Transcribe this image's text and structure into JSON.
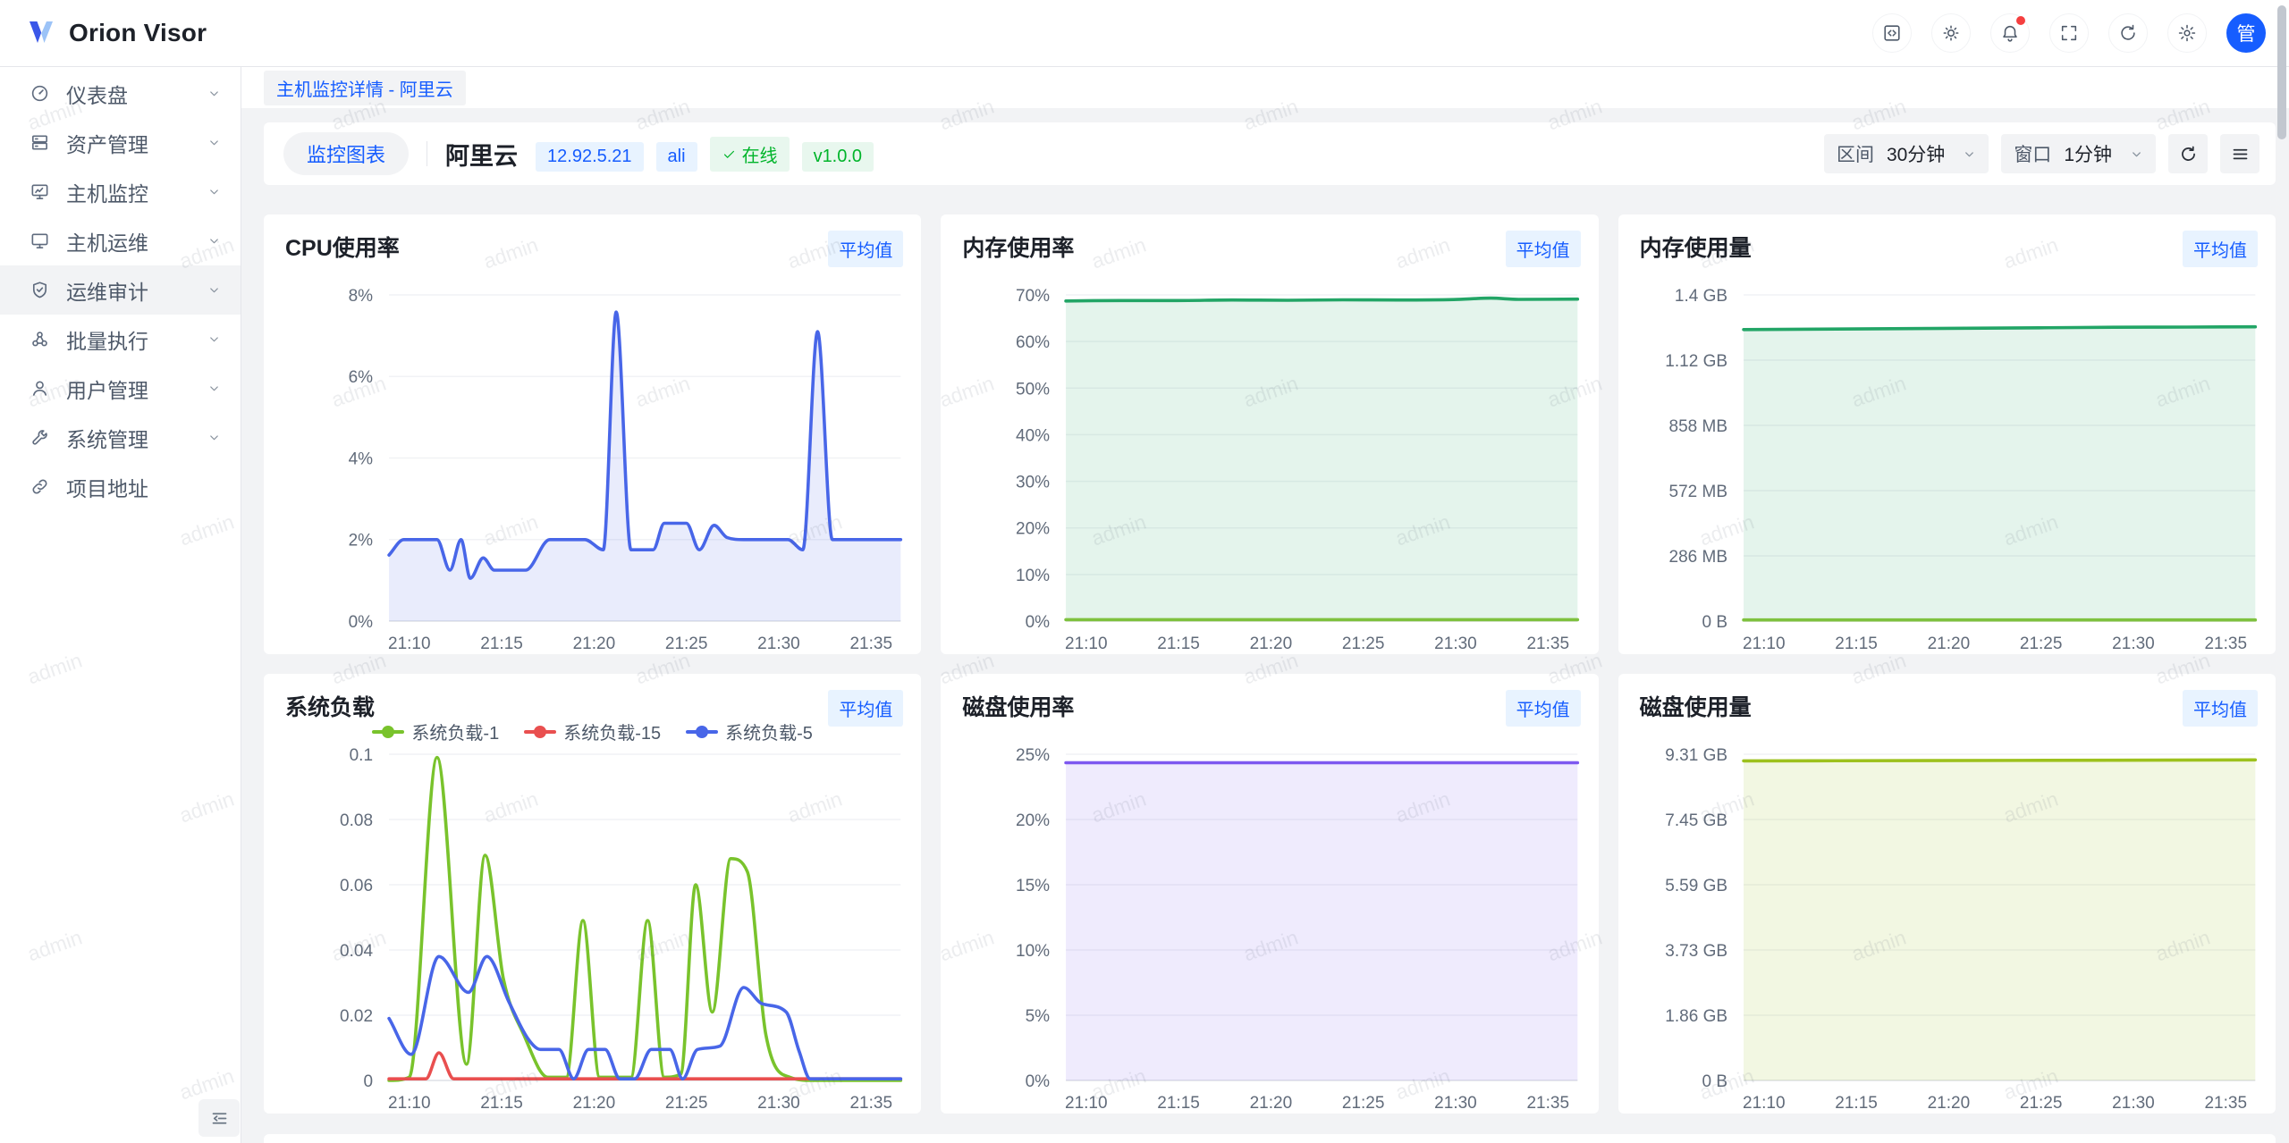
{
  "topbar": {
    "brand": "Orion Visor",
    "icons": [
      {
        "name": "code-icon",
        "badge": false
      },
      {
        "name": "theme-icon",
        "badge": false
      },
      {
        "name": "bell-icon",
        "badge": true
      },
      {
        "name": "fullscreen-icon",
        "badge": false
      },
      {
        "name": "refresh-icon",
        "badge": false
      },
      {
        "name": "settings-icon",
        "badge": false
      }
    ],
    "avatar_text": "管"
  },
  "sidebar": {
    "items": [
      {
        "key": "dashboard",
        "label": "仪表盘",
        "icon": "dashboard-icon",
        "chevron": true,
        "active": false
      },
      {
        "key": "assets",
        "label": "资产管理",
        "icon": "assets-icon",
        "chevron": true,
        "active": false
      },
      {
        "key": "host-monitor",
        "label": "主机监控",
        "icon": "host-monitor-icon",
        "chevron": true,
        "active": false
      },
      {
        "key": "host-ops",
        "label": "主机运维",
        "icon": "host-ops-icon",
        "chevron": true,
        "active": false
      },
      {
        "key": "ops-audit",
        "label": "运维审计",
        "icon": "audit-shield-icon",
        "chevron": true,
        "active": true
      },
      {
        "key": "batch-exec",
        "label": "批量执行",
        "icon": "batch-exec-icon",
        "chevron": true,
        "active": false
      },
      {
        "key": "user-mgmt",
        "label": "用户管理",
        "icon": "user-mgmt-icon",
        "chevron": true,
        "active": false
      },
      {
        "key": "system-mgmt",
        "label": "系统管理",
        "icon": "system-mgmt-icon",
        "chevron": true,
        "active": false
      },
      {
        "key": "project-link",
        "label": "项目地址",
        "icon": "project-link-icon",
        "chevron": false,
        "active": false
      }
    ]
  },
  "breadcrumb": {
    "label": "主机监控详情 - 阿里云"
  },
  "host_header": {
    "tab": "监控图表",
    "host_name": "阿里云",
    "tags": [
      {
        "key": "ip",
        "text": "12.92.5.21",
        "type": "blue",
        "check": false
      },
      {
        "key": "username",
        "text": "ali",
        "type": "blue",
        "check": false
      },
      {
        "key": "status",
        "text": "在线",
        "type": "green",
        "check": true
      },
      {
        "key": "version",
        "text": "v1.0.0",
        "type": "green",
        "check": false
      }
    ],
    "controls": {
      "interval_label": "区间",
      "interval_value": "30分钟",
      "window_label": "窗口",
      "window_value": "1分钟"
    }
  },
  "watermark": {
    "text": "admin"
  },
  "chart_data": [
    {
      "id": "cpu",
      "type": "area",
      "title": "CPU使用率",
      "badge": "平均值",
      "legend": false,
      "xlim": [
        0,
        27.7
      ],
      "ylim": [
        0,
        8
      ],
      "yticks": [
        "0%",
        "2%",
        "4%",
        "6%",
        "8%"
      ],
      "xticks": [
        {
          "t": 1.1,
          "label": "21:10"
        },
        {
          "t": 6.1,
          "label": "21:15"
        },
        {
          "t": 11.1,
          "label": "21:20"
        },
        {
          "t": 16.1,
          "label": "21:25"
        },
        {
          "t": 21.1,
          "label": "21:30"
        },
        {
          "t": 26.1,
          "label": "21:35"
        }
      ],
      "series": [
        {
          "name": "CPU使用率",
          "color": "#4866e8",
          "fill": "rgba(72,102,232,0.12)",
          "points": [
            [
              0,
              1.62
            ],
            [
              0.8,
              2
            ],
            [
              2.6,
              2
            ],
            [
              3.3,
              1.25
            ],
            [
              3.9,
              2
            ],
            [
              4.4,
              1.05
            ],
            [
              5.1,
              1.55
            ],
            [
              5.7,
              1.25
            ],
            [
              7.4,
              1.25
            ],
            [
              8.7,
              2
            ],
            [
              10.6,
              2
            ],
            [
              11.6,
              1.75
            ],
            [
              12.3,
              7.58
            ],
            [
              13.1,
              1.75
            ],
            [
              14.3,
              1.75
            ],
            [
              14.9,
              2.4
            ],
            [
              16.1,
              2.4
            ],
            [
              16.8,
              1.75
            ],
            [
              17.6,
              2.35
            ],
            [
              18.3,
              2.05
            ],
            [
              19.2,
              2
            ],
            [
              21.6,
              2
            ],
            [
              22.4,
              1.75
            ],
            [
              23.2,
              7.1
            ],
            [
              24,
              2
            ],
            [
              25.5,
              2
            ],
            [
              27.7,
              2
            ]
          ]
        }
      ]
    },
    {
      "id": "mem-rate",
      "type": "area",
      "title": "内存使用率",
      "badge": "平均值",
      "legend": false,
      "xlim": [
        0,
        27.7
      ],
      "ylim": [
        0,
        70
      ],
      "yticks": [
        "0%",
        "10%",
        "20%",
        "30%",
        "40%",
        "50%",
        "60%",
        "70%"
      ],
      "xticks": [
        {
          "t": 1.1,
          "label": "21:10"
        },
        {
          "t": 6.1,
          "label": "21:15"
        },
        {
          "t": 11.1,
          "label": "21:20"
        },
        {
          "t": 16.1,
          "label": "21:25"
        },
        {
          "t": 21.1,
          "label": "21:30"
        },
        {
          "t": 26.1,
          "label": "21:35"
        }
      ],
      "series": [
        {
          "name": "内存使用率",
          "color": "#22a566",
          "fill": "rgba(34,165,102,0.12)",
          "points": [
            [
              0,
              68.7
            ],
            [
              3,
              68.8
            ],
            [
              6,
              68.8
            ],
            [
              9,
              68.9
            ],
            [
              12,
              68.85
            ],
            [
              15,
              68.95
            ],
            [
              18,
              68.9
            ],
            [
              21,
              69
            ],
            [
              23,
              69.3
            ],
            [
              24.5,
              69.05
            ],
            [
              27.7,
              69.1
            ]
          ]
        },
        {
          "name": "",
          "color": "#7ec13e",
          "fill": null,
          "points": [
            [
              0,
              0.3
            ],
            [
              27.7,
              0.3
            ]
          ]
        }
      ]
    },
    {
      "id": "mem-usage",
      "type": "area",
      "title": "内存使用量",
      "badge": "平均值",
      "legend": false,
      "xlim": [
        0,
        27.7
      ],
      "ylim": [
        0,
        1.4
      ],
      "yticks": [
        "0 B",
        "286 MB",
        "572 MB",
        "858 MB",
        "1.12 GB",
        "1.4 GB"
      ],
      "xticks": [
        {
          "t": 1.1,
          "label": "21:10"
        },
        {
          "t": 6.1,
          "label": "21:15"
        },
        {
          "t": 11.1,
          "label": "21:20"
        },
        {
          "t": 16.1,
          "label": "21:25"
        },
        {
          "t": 21.1,
          "label": "21:30"
        },
        {
          "t": 26.1,
          "label": "21:35"
        }
      ],
      "series": [
        {
          "name": "内存使用量",
          "color": "#22a566",
          "fill": "rgba(34,165,102,0.12)",
          "points": [
            [
              0,
              1.251
            ],
            [
              4,
              1.253
            ],
            [
              8,
              1.255
            ],
            [
              12,
              1.257
            ],
            [
              16,
              1.259
            ],
            [
              20,
              1.261
            ],
            [
              24,
              1.262
            ],
            [
              27.7,
              1.263
            ]
          ]
        },
        {
          "name": "",
          "color": "#7ec13e",
          "fill": null,
          "points": [
            [
              0,
              0.005
            ],
            [
              27.7,
              0.005
            ]
          ]
        }
      ]
    },
    {
      "id": "load",
      "type": "line",
      "title": "系统负载",
      "badge": "平均值",
      "legend": true,
      "xlim": [
        0,
        27.7
      ],
      "ylim": [
        0,
        0.1
      ],
      "yticks": [
        "0",
        "0.02",
        "0.04",
        "0.06",
        "0.08",
        "0.1"
      ],
      "xticks": [
        {
          "t": 1.1,
          "label": "21:10"
        },
        {
          "t": 6.1,
          "label": "21:15"
        },
        {
          "t": 11.1,
          "label": "21:20"
        },
        {
          "t": 16.1,
          "label": "21:25"
        },
        {
          "t": 21.1,
          "label": "21:30"
        },
        {
          "t": 26.1,
          "label": "21:35"
        }
      ],
      "series": [
        {
          "name": "系统负载-1",
          "color": "#79c32c",
          "fill": null,
          "points": [
            [
              0,
              0
            ],
            [
              1.1,
              0.001
            ],
            [
              2.6,
              0.099
            ],
            [
              4.2,
              0.005
            ],
            [
              5.2,
              0.069
            ],
            [
              6.2,
              0.031
            ],
            [
              7.3,
              0.014
            ],
            [
              8.6,
              0.001
            ],
            [
              9.6,
              0.001
            ],
            [
              10.5,
              0.049
            ],
            [
              11.4,
              0.001
            ],
            [
              13.1,
              0.001
            ],
            [
              14,
              0.049
            ],
            [
              14.9,
              0.001
            ],
            [
              15.8,
              0.002
            ],
            [
              16.6,
              0.06
            ],
            [
              17.5,
              0.021
            ],
            [
              18.5,
              0.068
            ],
            [
              19.4,
              0.064
            ],
            [
              20.4,
              0.014
            ],
            [
              21.7,
              0.001
            ],
            [
              23,
              0
            ],
            [
              27.7,
              0
            ]
          ]
        },
        {
          "name": "系统负载-15",
          "color": "#e94f4f",
          "fill": null,
          "points": [
            [
              0,
              0.0005
            ],
            [
              2,
              0.0005
            ],
            [
              2.7,
              0.0085
            ],
            [
              3.5,
              0.0005
            ],
            [
              27.7,
              0.0005
            ]
          ]
        },
        {
          "name": "系统负载-5",
          "color": "#4866e8",
          "fill": null,
          "points": [
            [
              0,
              0.019
            ],
            [
              1.2,
              0.008
            ],
            [
              2.7,
              0.038
            ],
            [
              4.3,
              0.027
            ],
            [
              5.3,
              0.038
            ],
            [
              6.5,
              0.024
            ],
            [
              7.5,
              0.013
            ],
            [
              8.2,
              0.0095
            ],
            [
              9.2,
              0.0095
            ],
            [
              10,
              0.0005
            ],
            [
              10.8,
              0.0095
            ],
            [
              11.7,
              0.0095
            ],
            [
              12.5,
              0.0005
            ],
            [
              13.3,
              0.0005
            ],
            [
              14.2,
              0.0095
            ],
            [
              15.2,
              0.0095
            ],
            [
              15.9,
              0.0005
            ],
            [
              16.7,
              0.0095
            ],
            [
              17.9,
              0.0105
            ],
            [
              19.2,
              0.0285
            ],
            [
              20.2,
              0.0235
            ],
            [
              21.5,
              0.021
            ],
            [
              22.2,
              0.009
            ],
            [
              22.8,
              0.0005
            ],
            [
              27.7,
              0.0005
            ]
          ]
        }
      ]
    },
    {
      "id": "disk-rate",
      "type": "area",
      "title": "磁盘使用率",
      "badge": "平均值",
      "legend": false,
      "xlim": [
        0,
        27.7
      ],
      "ylim": [
        0,
        25
      ],
      "yticks": [
        "0%",
        "5%",
        "10%",
        "15%",
        "20%",
        "25%"
      ],
      "xticks": [
        {
          "t": 1.1,
          "label": "21:10"
        },
        {
          "t": 6.1,
          "label": "21:15"
        },
        {
          "t": 11.1,
          "label": "21:20"
        },
        {
          "t": 16.1,
          "label": "21:25"
        },
        {
          "t": 21.1,
          "label": "21:30"
        },
        {
          "t": 26.1,
          "label": "21:35"
        }
      ],
      "series": [
        {
          "name": "磁盘使用率",
          "color": "#7d58f0",
          "fill": "rgba(125,88,240,0.12)",
          "points": [
            [
              0,
              24.35
            ],
            [
              27.7,
              24.35
            ]
          ]
        }
      ]
    },
    {
      "id": "disk-usage",
      "type": "area",
      "title": "磁盘使用量",
      "badge": "平均值",
      "legend": false,
      "xlim": [
        0,
        27.7
      ],
      "ylim": [
        0,
        9.31
      ],
      "yticks": [
        "0 B",
        "1.86 GB",
        "3.73 GB",
        "5.59 GB",
        "7.45 GB",
        "9.31 GB"
      ],
      "xticks": [
        {
          "t": 1.1,
          "label": "21:10"
        },
        {
          "t": 6.1,
          "label": "21:15"
        },
        {
          "t": 11.1,
          "label": "21:20"
        },
        {
          "t": 16.1,
          "label": "21:25"
        },
        {
          "t": 21.1,
          "label": "21:30"
        },
        {
          "t": 26.1,
          "label": "21:35"
        }
      ],
      "series": [
        {
          "name": "磁盘使用量",
          "color": "#9dc11d",
          "fill": "rgba(157,193,29,0.13)",
          "points": [
            [
              0,
              9.12
            ],
            [
              10,
              9.13
            ],
            [
              20,
              9.14
            ],
            [
              27.7,
              9.15
            ]
          ]
        }
      ]
    }
  ]
}
